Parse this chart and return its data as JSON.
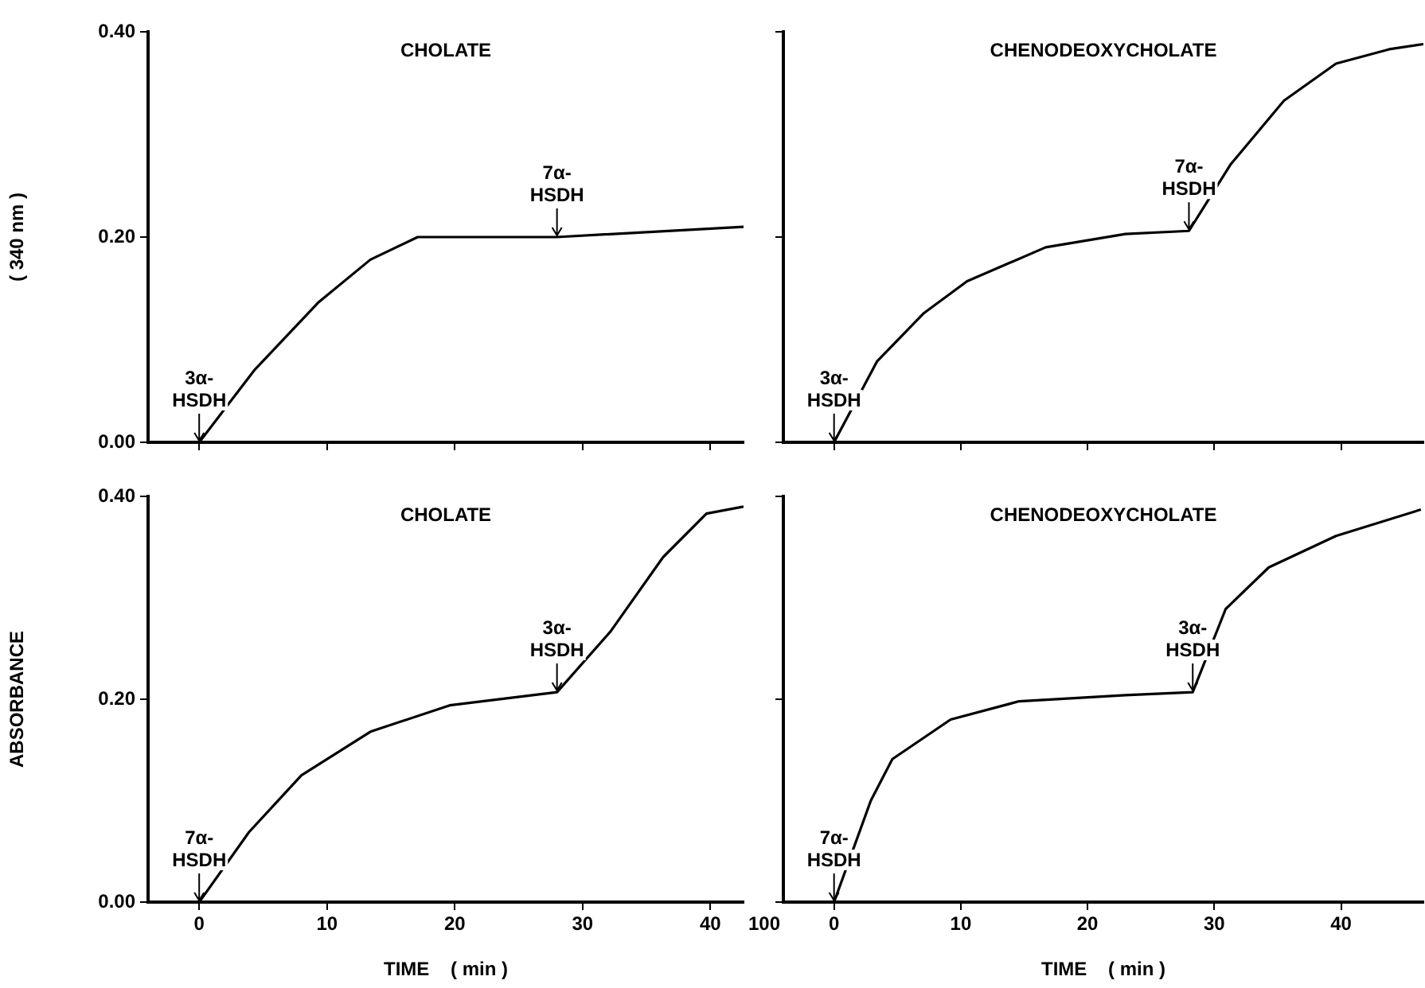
{
  "chart_data": [
    {
      "type": "line",
      "title": "CHOLATE",
      "ylabel": "( 340 nm )",
      "xlim": [
        -4,
        42.6
      ],
      "ylim": [
        0,
        0.4
      ],
      "xticks": [
        0,
        10,
        20,
        30,
        40
      ],
      "yticks": [
        {
          "value": 0,
          "label": "0.00"
        },
        {
          "value": 0.2,
          "label": "0.20"
        },
        {
          "value": 0.4,
          "label": "0.40"
        }
      ],
      "tick_labels": "y",
      "grid": false,
      "marker": "none",
      "line_style": "solid",
      "series": [
        {
          "color": "#000000",
          "x": [
            -4,
            0,
            4.3,
            9.3,
            13.4,
            17.1,
            28,
            42.6
          ],
          "values": [
            0,
            0,
            0.07,
            0.136,
            0.178,
            0.2,
            0.2,
            0.21
          ]
        }
      ],
      "annotations": [
        {
          "text": "3α-\nHSDH",
          "x": 0,
          "y": 0
        },
        {
          "text": "7α-\nHSDH",
          "x": 28,
          "y": 0.2
        }
      ]
    },
    {
      "type": "line",
      "title": "CHENODEOXYCHOLATE",
      "xlim": [
        -4,
        46.5
      ],
      "ylim": [
        0,
        0.4
      ],
      "xticks": [
        0,
        10,
        20,
        30,
        40
      ],
      "yticks": [
        0,
        0.2,
        0.4
      ],
      "tick_labels": false,
      "grid": false,
      "marker": "none",
      "line_style": "solid",
      "series": [
        {
          "color": "#000000",
          "x": [
            -4,
            0,
            3.4,
            7.1,
            10.5,
            16.7,
            23,
            28,
            31.3,
            35.5,
            39.6,
            43.8,
            46.5
          ],
          "values": [
            0,
            0,
            0.079,
            0.126,
            0.157,
            0.19,
            0.203,
            0.206,
            0.271,
            0.333,
            0.369,
            0.383,
            0.388
          ]
        }
      ],
      "annotations": [
        {
          "text": "3α-\nHSDH",
          "x": 0,
          "y": 0
        },
        {
          "text": "7α-\nHSDH",
          "x": 28,
          "y": 0.206
        }
      ]
    },
    {
      "type": "line",
      "title": "CHOLATE",
      "xlabel": "TIME    ( min )",
      "ylabel": "ABSORBANCE",
      "xlim": [
        -4,
        42.6
      ],
      "ylim": [
        0,
        0.4
      ],
      "xticks": [
        0,
        10,
        20,
        30,
        40
      ],
      "yticks": [
        {
          "value": 0,
          "label": "0.00"
        },
        {
          "value": 0.2,
          "label": "0.20"
        },
        {
          "value": 0.4,
          "label": "0.40"
        }
      ],
      "grid": false,
      "marker": "none",
      "line_style": "solid",
      "series": [
        {
          "color": "#000000",
          "x": [
            -4,
            0,
            3.9,
            8,
            13.4,
            19.6,
            28,
            32.2,
            36.3,
            39.7,
            42.6
          ],
          "values": [
            0,
            0,
            0.069,
            0.125,
            0.168,
            0.194,
            0.207,
            0.267,
            0.34,
            0.383,
            0.39
          ]
        }
      ],
      "annotations": [
        {
          "text": "7α-\nHSDH",
          "x": 0,
          "y": 0
        },
        {
          "text": "3α-\nHSDH",
          "x": 28,
          "y": 0.207
        },
        "100"
      ]
    },
    {
      "type": "line",
      "title": "CHENODEOXYCHOLATE",
      "xlabel": "TIME    ( min )",
      "xlim": [
        -4,
        46.5
      ],
      "ylim": [
        0,
        0.4
      ],
      "xticks": [
        0,
        10,
        20,
        30,
        40
      ],
      "yticks": [
        0,
        0.2,
        0.4
      ],
      "tick_labels": "x",
      "grid": false,
      "marker": "none",
      "line_style": "solid",
      "series": [
        {
          "color": "#000000",
          "x": [
            -4,
            0,
            2.9,
            4.6,
            9.2,
            14.6,
            23,
            28.3,
            30.9,
            34.3,
            39.6,
            46.3
          ],
          "values": [
            0,
            0,
            0.1,
            0.141,
            0.18,
            0.198,
            0.204,
            0.207,
            0.289,
            0.33,
            0.361,
            0.387
          ]
        }
      ],
      "annotations": [
        {
          "text": "7α-\nHSDH",
          "x": 0,
          "y": 0
        },
        {
          "text": "3α-\nHSDH",
          "x": 28.3,
          "y": 0.207
        }
      ]
    }
  ]
}
